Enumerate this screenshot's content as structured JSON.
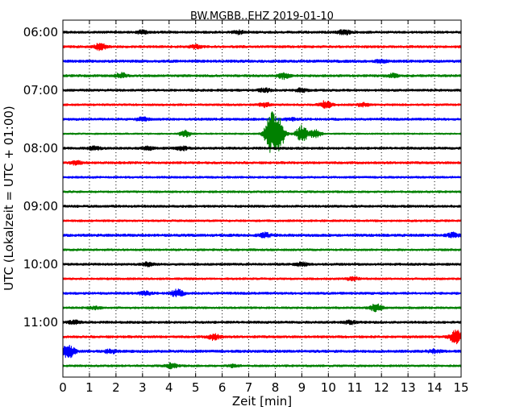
{
  "chart_data": {
    "type": "line",
    "title": "BW.MGBB..EHZ 2019-01-10",
    "xlabel": "Zeit  [min]",
    "ylabel": "UTC (Lokalzeit = UTC + 01:00)",
    "xlim": [
      0,
      15
    ],
    "x_ticks": [
      "0",
      "1",
      "2",
      "3",
      "4",
      "5",
      "6",
      "7",
      "8",
      "9",
      "10",
      "11",
      "12",
      "13",
      "14",
      "15"
    ],
    "y_ticks": [
      "06:00",
      "07:00",
      "08:00",
      "09:00",
      "10:00",
      "11:00"
    ],
    "grid": "vertical-dotted",
    "trace_colors": [
      "#000000",
      "#ff0000",
      "#0000ff",
      "#008000"
    ],
    "series": [
      {
        "start": "06:00",
        "color": "#000000",
        "noise": 0.9,
        "events": [
          {
            "t": 3.0,
            "a": 2.0
          },
          {
            "t": 6.6,
            "a": 2.0
          },
          {
            "t": 10.6,
            "a": 3.0
          }
        ]
      },
      {
        "start": "06:15",
        "color": "#ff0000",
        "noise": 0.9,
        "events": [
          {
            "t": 1.4,
            "a": 4.0
          },
          {
            "t": 5.0,
            "a": 2.0
          }
        ]
      },
      {
        "start": "06:30",
        "color": "#0000ff",
        "noise": 1.0,
        "events": [
          {
            "t": 12.0,
            "a": 1.5
          }
        ]
      },
      {
        "start": "06:45",
        "color": "#008000",
        "noise": 0.9,
        "events": [
          {
            "t": 2.2,
            "a": 3.0
          },
          {
            "t": 8.3,
            "a": 3.5
          },
          {
            "t": 12.4,
            "a": 2.0
          }
        ]
      },
      {
        "start": "07:00",
        "color": "#000000",
        "noise": 0.9,
        "events": [
          {
            "t": 7.6,
            "a": 2.0
          },
          {
            "t": 9.0,
            "a": 2.0
          }
        ]
      },
      {
        "start": "07:15",
        "color": "#ff0000",
        "noise": 0.8,
        "events": [
          {
            "t": 7.6,
            "a": 2.5
          },
          {
            "t": 9.9,
            "a": 4.5
          },
          {
            "t": 11.3,
            "a": 2.0
          }
        ]
      },
      {
        "start": "07:30",
        "color": "#0000ff",
        "noise": 0.9,
        "events": [
          {
            "t": 3.0,
            "a": 2.0
          },
          {
            "t": 8.6,
            "a": 1.5
          }
        ]
      },
      {
        "start": "07:45",
        "color": "#008000",
        "noise": 0.6,
        "events": [
          {
            "t": 4.6,
            "a": 4.0
          },
          {
            "t": 7.8,
            "a": 20.0
          },
          {
            "t": 8.1,
            "a": 25.0
          },
          {
            "t": 9.0,
            "a": 10.0
          },
          {
            "t": 9.5,
            "a": 5.0
          }
        ]
      },
      {
        "start": "08:00",
        "color": "#000000",
        "noise": 0.9,
        "events": [
          {
            "t": 1.2,
            "a": 2.0
          },
          {
            "t": 3.2,
            "a": 2.0
          },
          {
            "t": 4.5,
            "a": 2.0
          }
        ]
      },
      {
        "start": "08:15",
        "color": "#ff0000",
        "noise": 0.9,
        "events": [
          {
            "t": 0.5,
            "a": 2.0
          }
        ]
      },
      {
        "start": "08:30",
        "color": "#0000ff",
        "noise": 0.8,
        "events": []
      },
      {
        "start": "08:45",
        "color": "#008000",
        "noise": 0.8,
        "events": []
      },
      {
        "start": "09:00",
        "color": "#000000",
        "noise": 0.9,
        "events": []
      },
      {
        "start": "09:15",
        "color": "#ff0000",
        "noise": 0.8,
        "events": []
      },
      {
        "start": "09:30",
        "color": "#0000ff",
        "noise": 1.0,
        "events": [
          {
            "t": 7.6,
            "a": 2.5
          },
          {
            "t": 14.7,
            "a": 2.5
          }
        ]
      },
      {
        "start": "09:45",
        "color": "#008000",
        "noise": 0.8,
        "events": []
      },
      {
        "start": "10:00",
        "color": "#000000",
        "noise": 0.9,
        "events": [
          {
            "t": 3.2,
            "a": 2.0
          },
          {
            "t": 9.0,
            "a": 2.0
          }
        ]
      },
      {
        "start": "10:15",
        "color": "#ff0000",
        "noise": 0.8,
        "events": [
          {
            "t": 10.9,
            "a": 2.0
          }
        ]
      },
      {
        "start": "10:30",
        "color": "#0000ff",
        "noise": 0.9,
        "events": [
          {
            "t": 3.1,
            "a": 2.0
          },
          {
            "t": 4.3,
            "a": 4.5
          }
        ]
      },
      {
        "start": "10:45",
        "color": "#008000",
        "noise": 0.8,
        "events": [
          {
            "t": 1.2,
            "a": 1.5
          },
          {
            "t": 11.8,
            "a": 4.5
          }
        ]
      },
      {
        "start": "11:00",
        "color": "#000000",
        "noise": 0.9,
        "events": [
          {
            "t": 0.4,
            "a": 2.0
          },
          {
            "t": 10.8,
            "a": 2.0
          }
        ]
      },
      {
        "start": "11:15",
        "color": "#ff0000",
        "noise": 0.9,
        "events": [
          {
            "t": 5.7,
            "a": 3.5
          },
          {
            "t": 14.8,
            "a": 8.0
          }
        ]
      },
      {
        "start": "11:30",
        "color": "#0000ff",
        "noise": 1.0,
        "events": [
          {
            "t": 0.2,
            "a": 9.0
          },
          {
            "t": 1.8,
            "a": 2.0
          },
          {
            "t": 14.0,
            "a": 2.0
          }
        ]
      },
      {
        "start": "11:45",
        "color": "#008000",
        "noise": 0.8,
        "events": [
          {
            "t": 4.1,
            "a": 3.0
          },
          {
            "t": 6.4,
            "a": 1.5
          }
        ]
      }
    ]
  }
}
